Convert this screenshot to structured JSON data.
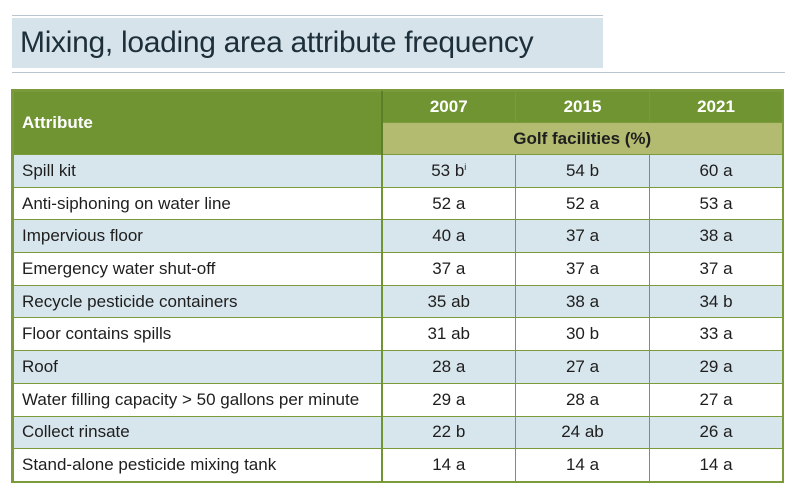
{
  "title": "Mixing, loading area attribute frequency",
  "table": {
    "attribute_header": "Attribute",
    "years": [
      "2007",
      "2015",
      "2021"
    ],
    "subheader": "Golf facilities (%)",
    "rows": [
      {
        "attribute": "Spill kit",
        "v2007": "53 b",
        "v2007_sup": "i",
        "v2015": "54 b",
        "v2021": "60 a"
      },
      {
        "attribute": "Anti-siphoning on water line",
        "v2007": "52 a",
        "v2015": "52 a",
        "v2021": "53 a"
      },
      {
        "attribute": "Impervious floor",
        "v2007": "40 a",
        "v2015": "37 a",
        "v2021": "38 a"
      },
      {
        "attribute": "Emergency water shut-off",
        "v2007": "37 a",
        "v2015": "37 a",
        "v2021": "37 a"
      },
      {
        "attribute": "Recycle pesticide containers",
        "v2007": "35 ab",
        "v2015": "38 a",
        "v2021": "34 b"
      },
      {
        "attribute": "Floor contains spills",
        "v2007": "31 ab",
        "v2015": "30 b",
        "v2021": "33 a"
      },
      {
        "attribute": "Roof",
        "v2007": "28 a",
        "v2015": "27 a",
        "v2021": "29 a"
      },
      {
        "attribute": "Water filling capacity > 50 gallons per minute",
        "v2007": "29 a",
        "v2015": "28 a",
        "v2021": "27 a"
      },
      {
        "attribute": "Collect rinsate",
        "v2007": "22 b",
        "v2015": "24 ab",
        "v2021": "26 a"
      },
      {
        "attribute": "Stand-alone pesticide mixing tank",
        "v2007": "14 a",
        "v2015": "14 a",
        "v2021": "14 a"
      }
    ]
  },
  "colors": {
    "header_green": "#6f9431",
    "subheader_olive": "#b2bb6f",
    "row_blue": "#d7e5ec",
    "title_bg": "#d6e3ea"
  }
}
